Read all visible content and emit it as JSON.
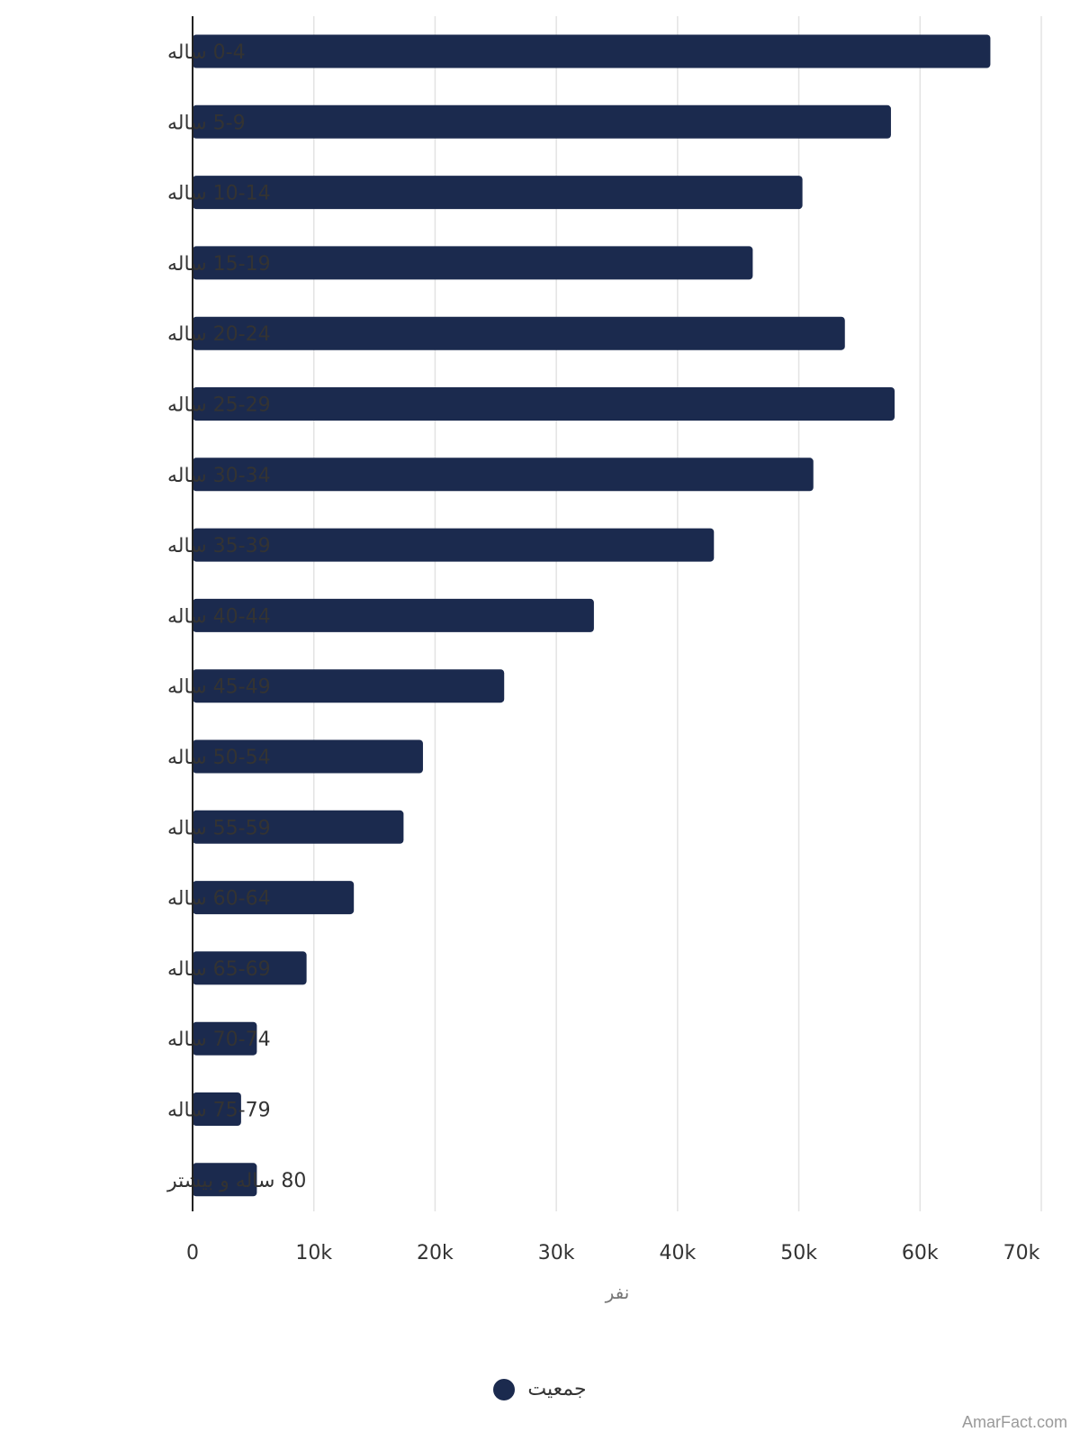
{
  "chart_data": {
    "type": "bar",
    "orientation": "horizontal",
    "categories": [
      "0-4 ساله",
      "5-9 ساله",
      "10-14 ساله",
      "15-19 ساله",
      "20-24 ساله",
      "25-29 ساله",
      "30-34 ساله",
      "35-39 ساله",
      "40-44 ساله",
      "45-49 ساله",
      "50-54 ساله",
      "55-59 ساله",
      "60-64 ساله",
      "65-69 ساله",
      "70-74 ساله",
      "75-79 ساله",
      "80 ساله و بیشتر"
    ],
    "series": [
      {
        "name": "جمعیت",
        "values": [
          65800,
          57600,
          50300,
          46200,
          53800,
          57900,
          51200,
          43000,
          33100,
          25700,
          19000,
          17400,
          13300,
          9400,
          5300,
          4000,
          5300
        ],
        "color": "#1b2a4e"
      }
    ],
    "xlabel": "نفر",
    "ylabel": "",
    "xlim": [
      0,
      70000
    ],
    "x_ticks": [
      {
        "value": 0,
        "label": "0"
      },
      {
        "value": 10000,
        "label": "10k"
      },
      {
        "value": 20000,
        "label": "20k"
      },
      {
        "value": 30000,
        "label": "30k"
      },
      {
        "value": 40000,
        "label": "40k"
      },
      {
        "value": 50000,
        "label": "50k"
      },
      {
        "value": 60000,
        "label": "60k"
      },
      {
        "value": 70000,
        "label": "70k"
      }
    ],
    "grid": true,
    "legend_position": "bottom"
  },
  "watermark": "AmarFact.com",
  "colors": {
    "bar": "#1b2a4e",
    "grid": "#e3e3e3",
    "axis": "#222222"
  }
}
